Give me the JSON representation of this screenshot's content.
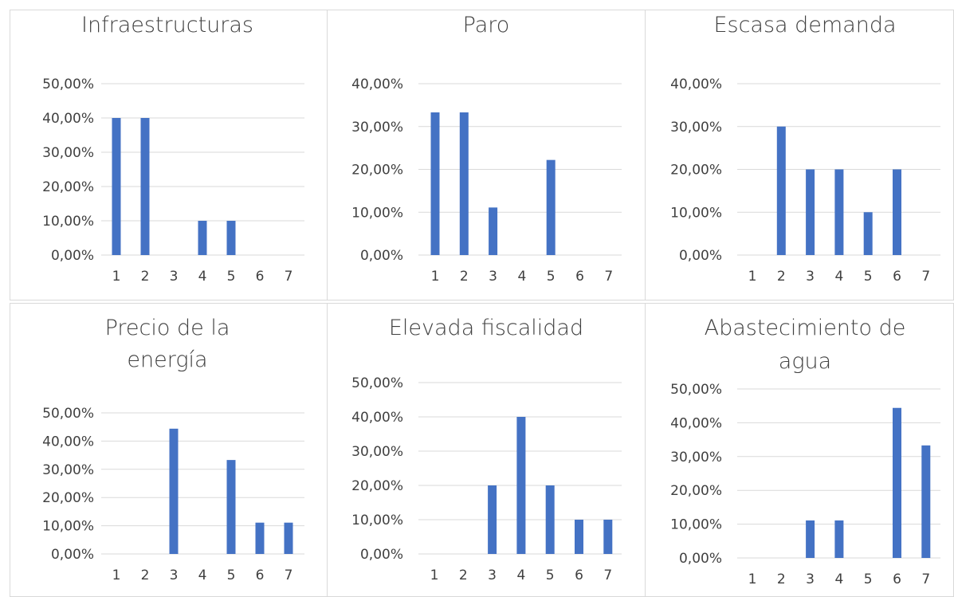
{
  "chart_data": [
    {
      "type": "bar",
      "title": "Infraestructuras",
      "categories": [
        "1",
        "2",
        "3",
        "4",
        "5",
        "6",
        "7"
      ],
      "values": [
        0.4,
        0.4,
        0,
        0.1,
        0.1,
        0,
        0
      ],
      "ylim": [
        0,
        0.5
      ],
      "yticks": [
        "0,00%",
        "10,00%",
        "20,00%",
        "30,00%",
        "40,00%",
        "50,00%"
      ],
      "color": "#4472c4",
      "grid": true
    },
    {
      "type": "bar",
      "title": "Paro",
      "categories": [
        "1",
        "2",
        "3",
        "4",
        "5",
        "6",
        "7"
      ],
      "values": [
        0.333,
        0.333,
        0.111,
        0,
        0.222,
        0,
        0
      ],
      "ylim": [
        0,
        0.4
      ],
      "yticks": [
        "0,00%",
        "10,00%",
        "20,00%",
        "30,00%",
        "40,00%"
      ],
      "color": "#4472c4",
      "grid": true
    },
    {
      "type": "bar",
      "title": "Escasa demanda",
      "categories": [
        "1",
        "2",
        "3",
        "4",
        "5",
        "6",
        "7"
      ],
      "values": [
        0,
        0.3,
        0.2,
        0.2,
        0.1,
        0.2,
        0
      ],
      "ylim": [
        0,
        0.4
      ],
      "yticks": [
        "0,00%",
        "10,00%",
        "20,00%",
        "30,00%",
        "40,00%"
      ],
      "color": "#4472c4",
      "grid": true
    },
    {
      "type": "bar",
      "title": "Precio de la energía",
      "title_lines": [
        "Precio de la",
        "energía"
      ],
      "categories": [
        "1",
        "2",
        "3",
        "4",
        "5",
        "6",
        "7"
      ],
      "values": [
        0,
        0,
        0.444,
        0,
        0.333,
        0.111,
        0.111
      ],
      "ylim": [
        0,
        0.5
      ],
      "yticks": [
        "0,00%",
        "10,00%",
        "20,00%",
        "30,00%",
        "40,00%",
        "50,00%"
      ],
      "color": "#4472c4",
      "grid": true
    },
    {
      "type": "bar",
      "title": "Elevada fiscalidad",
      "categories": [
        "1",
        "2",
        "3",
        "4",
        "5",
        "6",
        "7"
      ],
      "values": [
        0,
        0,
        0.2,
        0.4,
        0.2,
        0.1,
        0.1
      ],
      "ylim": [
        0,
        0.5
      ],
      "yticks": [
        "0,00%",
        "10,00%",
        "20,00%",
        "30,00%",
        "40,00%",
        "50,00%"
      ],
      "color": "#4472c4",
      "grid": true
    },
    {
      "type": "bar",
      "title": "Abastecimiento de agua",
      "title_lines": [
        "Abastecimiento de",
        "agua"
      ],
      "categories": [
        "1",
        "2",
        "3",
        "4",
        "5",
        "6",
        "7"
      ],
      "values": [
        0,
        0,
        0.111,
        0.111,
        0,
        0.444,
        0.333
      ],
      "ylim": [
        0,
        0.5
      ],
      "yticks": [
        "0,00%",
        "10,00%",
        "20,00%",
        "30,00%",
        "40,00%",
        "50,00%"
      ],
      "color": "#4472c4",
      "grid": true
    }
  ]
}
